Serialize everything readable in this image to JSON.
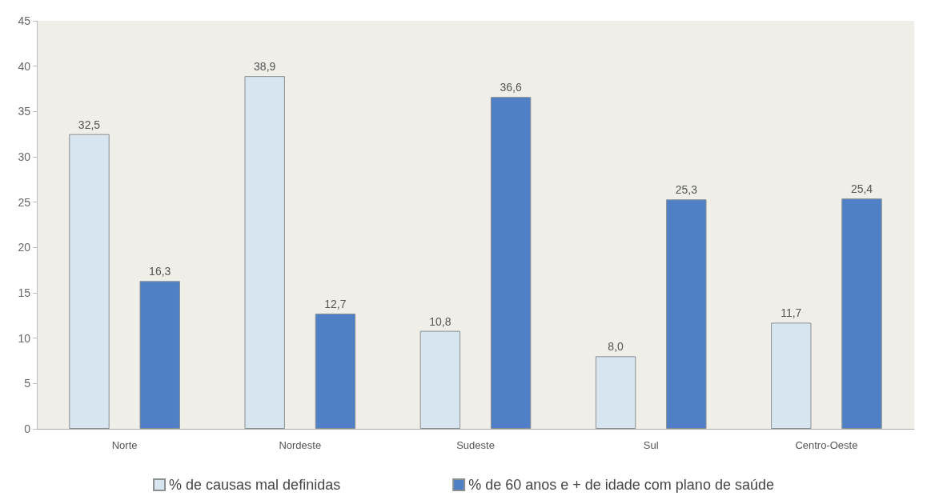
{
  "chart_data": {
    "type": "bar",
    "categories": [
      "Norte",
      "Nordeste",
      "Sudeste",
      "Sul",
      "Centro-Oeste"
    ],
    "series": [
      {
        "name": "% de causas mal definidas",
        "color": "#d6e5ef",
        "values": [
          32.5,
          38.9,
          10.8,
          8.0,
          11.7
        ],
        "value_labels": [
          "32,5",
          "38,9",
          "10,8",
          "8,0",
          "11,7"
        ]
      },
      {
        "name": "% de 60 anos e + de idade com plano de saúde",
        "color": "#4f80c6",
        "values": [
          16.3,
          12.7,
          36.6,
          25.3,
          25.4
        ],
        "value_labels": [
          "16,3",
          "12,7",
          "36,6",
          "25,3",
          "25,4"
        ]
      }
    ],
    "ylim": [
      0,
      45
    ],
    "yticks": [
      0,
      5,
      10,
      15,
      20,
      25,
      30,
      35,
      40,
      45
    ],
    "grid": false,
    "legend": "bottom"
  }
}
